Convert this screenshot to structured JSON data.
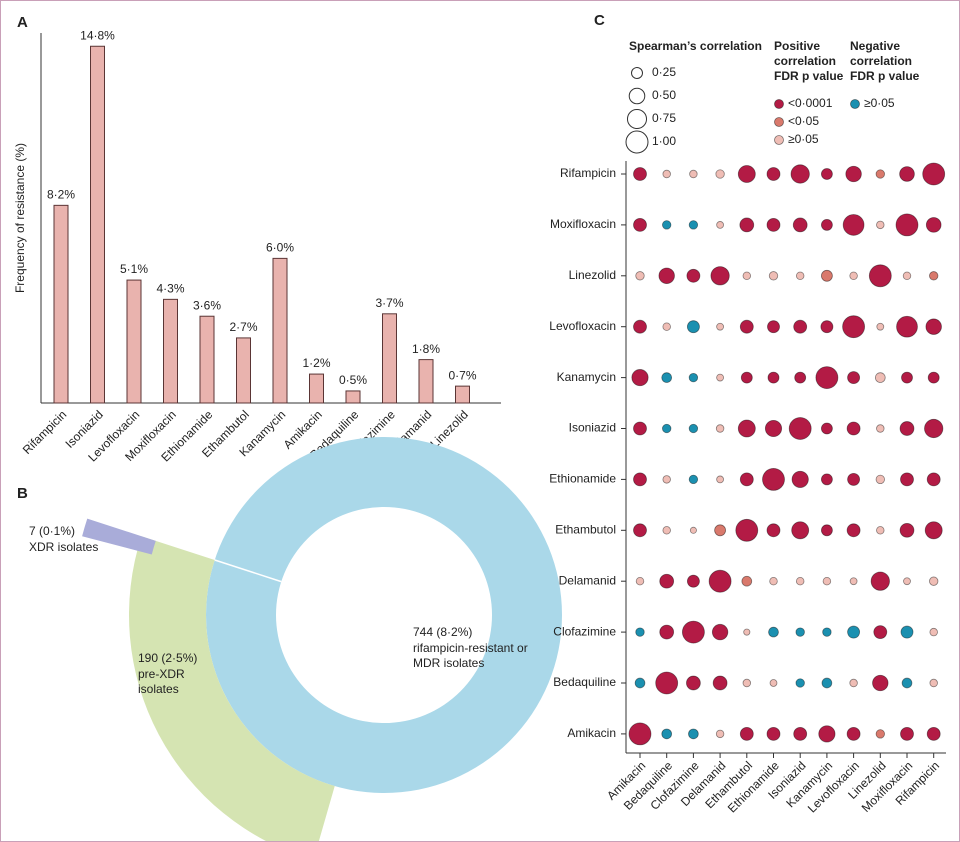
{
  "chart_data": [
    {
      "type": "bar",
      "panel": "A",
      "ylabel": "Frequency of resistance (%)",
      "categories": [
        "Rifampicin",
        "Isoniazid",
        "Levofloxacin",
        "Moxifloxacin",
        "Ethionamide",
        "Ethambutol",
        "Kanamycin",
        "Amikacin",
        "Bedaquiline",
        "Clofazimine",
        "Delamanid",
        "Linezolid"
      ],
      "values": [
        8.2,
        14.8,
        5.1,
        4.3,
        3.6,
        2.7,
        6.0,
        1.2,
        0.5,
        3.7,
        1.8,
        0.7
      ],
      "value_labels": [
        "8·2%",
        "14·8%",
        "5·1%",
        "4·3%",
        "3·6%",
        "2·7%",
        "6·0%",
        "1·2%",
        "0·5%",
        "3·7%",
        "1·8%",
        "0·7%"
      ],
      "color": "#e9b3ae",
      "ylim": [
        0,
        15.35
      ]
    },
    {
      "type": "nested-pie",
      "panel": "B",
      "categories": [
        "rifampicin-resistant or MDR isolates",
        "pre-XDR isolates",
        "XDR isolates"
      ],
      "values": [
        744,
        190,
        7
      ],
      "value_labels": [
        "744 (8·2%)",
        "190 (2·5%)",
        "7 (0·1%)"
      ],
      "colors": [
        "#aad8e9",
        "#d5e4b2",
        "#a9acd9"
      ]
    },
    {
      "type": "bubble-matrix",
      "panel": "C",
      "rows": [
        "Rifampicin",
        "Moxifloxacin",
        "Linezolid",
        "Levofloxacin",
        "Kanamycin",
        "Isoniazid",
        "Ethionamide",
        "Ethambutol",
        "Delamanid",
        "Clofazimine",
        "Bedaquiline",
        "Amikacin"
      ],
      "columns": [
        "Amikacin",
        "Bedaquiline",
        "Clofazimine",
        "Delamanid",
        "Ethambutol",
        "Ethionamide",
        "Isoniazid",
        "Kanamycin",
        "Levofloxacin",
        "Linezolid",
        "Moxifloxacin",
        "Rifampicin"
      ],
      "values": [
        [
          0.35,
          0.12,
          0.12,
          0.15,
          0.6,
          0.35,
          0.7,
          0.25,
          0.5,
          0.15,
          0.45,
          1
        ],
        [
          0.35,
          -0.15,
          -0.15,
          0.1,
          0.4,
          0.35,
          0.4,
          0.25,
          0.9,
          0.12,
          1,
          0.45
        ],
        [
          0.15,
          0.5,
          0.35,
          0.7,
          0.12,
          0.15,
          0.12,
          0.25,
          0.12,
          1,
          0.12,
          0.15
        ],
        [
          0.35,
          0.12,
          -0.3,
          0.1,
          0.35,
          0.3,
          0.35,
          0.3,
          1,
          0.1,
          0.9,
          0.5
        ],
        [
          0.55,
          -0.2,
          -0.15,
          0.1,
          0.25,
          0.25,
          0.25,
          1,
          0.3,
          0.2,
          0.25,
          0.25
        ],
        [
          0.35,
          -0.15,
          -0.15,
          0.12,
          0.6,
          0.55,
          1,
          0.25,
          0.35,
          0.12,
          0.4,
          0.7
        ],
        [
          0.35,
          0.12,
          -0.15,
          0.1,
          0.35,
          1,
          0.55,
          0.25,
          0.3,
          0.15,
          0.35,
          0.35
        ],
        [
          0.35,
          0.12,
          0.08,
          0.25,
          1,
          0.35,
          0.6,
          0.25,
          0.35,
          0.12,
          0.4,
          0.6
        ],
        [
          0.12,
          0.4,
          0.3,
          1,
          0.2,
          0.12,
          0.12,
          0.12,
          0.1,
          0.7,
          0.1,
          0.15
        ],
        [
          -0.15,
          0.4,
          1,
          0.5,
          0.08,
          -0.2,
          -0.15,
          -0.15,
          -0.3,
          0.35,
          -0.3,
          0.12
        ],
        [
          -0.2,
          1,
          0.4,
          0.4,
          0.12,
          0.1,
          -0.15,
          -0.2,
          0.12,
          0.5,
          -0.2,
          0.12
        ],
        [
          1,
          -0.2,
          -0.2,
          0.12,
          0.35,
          0.35,
          0.35,
          0.55,
          0.35,
          0.15,
          0.35,
          0.35
        ]
      ],
      "groups": [
        [
          0,
          2,
          2,
          2,
          0,
          0,
          0,
          0,
          0,
          1,
          0,
          0
        ],
        [
          0,
          3,
          3,
          2,
          0,
          0,
          0,
          0,
          0,
          2,
          0,
          0
        ],
        [
          2,
          0,
          0,
          0,
          2,
          2,
          2,
          1,
          2,
          0,
          2,
          1
        ],
        [
          0,
          2,
          3,
          2,
          0,
          0,
          0,
          0,
          0,
          2,
          0,
          0
        ],
        [
          0,
          3,
          3,
          2,
          0,
          0,
          0,
          0,
          0,
          2,
          0,
          0
        ],
        [
          0,
          3,
          3,
          2,
          0,
          0,
          0,
          0,
          0,
          2,
          0,
          0
        ],
        [
          0,
          2,
          3,
          2,
          0,
          0,
          0,
          0,
          0,
          2,
          0,
          0
        ],
        [
          0,
          2,
          2,
          1,
          0,
          0,
          0,
          0,
          0,
          2,
          0,
          0
        ],
        [
          2,
          0,
          0,
          0,
          1,
          2,
          2,
          2,
          2,
          0,
          2,
          2
        ],
        [
          3,
          0,
          0,
          0,
          2,
          3,
          3,
          3,
          3,
          0,
          3,
          2
        ],
        [
          3,
          0,
          0,
          0,
          2,
          2,
          3,
          3,
          2,
          0,
          3,
          2
        ],
        [
          0,
          3,
          3,
          2,
          0,
          0,
          0,
          0,
          0,
          1,
          0,
          0
        ]
      ],
      "size_legend": {
        "title": "Spearman’s correlation",
        "ticks": [
          {
            "value": 0.25,
            "label": "0·25"
          },
          {
            "value": 0.5,
            "label": "0·50"
          },
          {
            "value": 0.75,
            "label": "0·75"
          },
          {
            "value": 1,
            "label": "1·00"
          }
        ]
      },
      "color_legend": [
        {
          "title": "Positive correlation FDR p value",
          "entries": [
            {
              "label": "<0·0001",
              "color": "#b31b45"
            },
            {
              "label": "<0·05",
              "color": "#d9796c"
            },
            {
              "label": "≥0·05",
              "color": "#efbdb5"
            }
          ]
        },
        {
          "title": "Negative correlation FDR p value",
          "entries": [
            {
              "label": "≥0·05",
              "color": "#1b90b0"
            }
          ]
        }
      ]
    }
  ]
}
